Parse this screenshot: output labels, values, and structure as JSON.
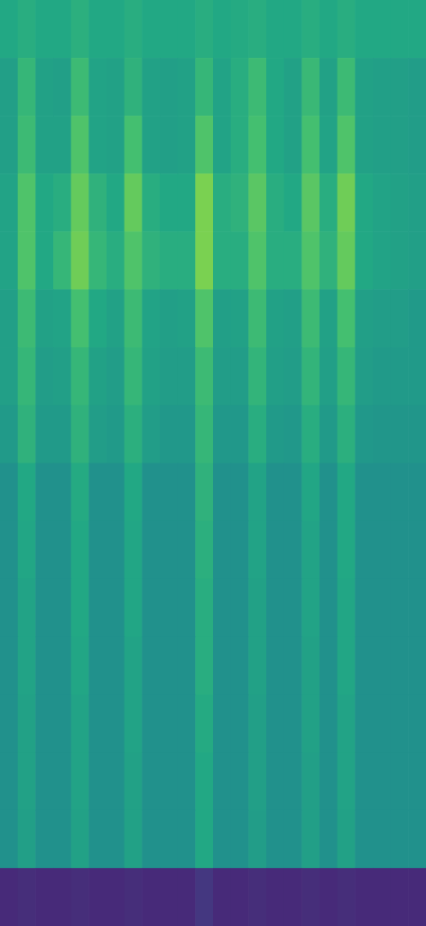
{
  "chart_data": {
    "type": "heatmap",
    "color": "viridis",
    "tick_labels": false,
    "xlim": [
      0,
      24
    ],
    "ylim": [
      0,
      16
    ],
    "color_range": [
      0,
      1
    ],
    "cells": [
      [
        0.6,
        0.62,
        0.6,
        0.6,
        0.63,
        0.6,
        0.6,
        0.62,
        0.6,
        0.6,
        0.6,
        0.62,
        0.6,
        0.61,
        0.62,
        0.6,
        0.6,
        0.62,
        0.6,
        0.62,
        0.6,
        0.6,
        0.6,
        0.6
      ],
      [
        0.56,
        0.66,
        0.57,
        0.56,
        0.68,
        0.58,
        0.57,
        0.64,
        0.57,
        0.56,
        0.57,
        0.66,
        0.58,
        0.62,
        0.68,
        0.6,
        0.57,
        0.67,
        0.57,
        0.68,
        0.57,
        0.56,
        0.56,
        0.55
      ],
      [
        0.56,
        0.68,
        0.57,
        0.57,
        0.72,
        0.58,
        0.57,
        0.7,
        0.57,
        0.56,
        0.57,
        0.72,
        0.58,
        0.62,
        0.7,
        0.6,
        0.57,
        0.7,
        0.58,
        0.72,
        0.57,
        0.56,
        0.56,
        0.55
      ],
      [
        0.58,
        0.72,
        0.6,
        0.62,
        0.76,
        0.64,
        0.6,
        0.76,
        0.62,
        0.6,
        0.6,
        0.8,
        0.62,
        0.64,
        0.74,
        0.62,
        0.6,
        0.74,
        0.62,
        0.78,
        0.6,
        0.58,
        0.57,
        0.56
      ],
      [
        0.58,
        0.72,
        0.6,
        0.66,
        0.78,
        0.66,
        0.62,
        0.72,
        0.64,
        0.62,
        0.62,
        0.8,
        0.62,
        0.62,
        0.72,
        0.62,
        0.62,
        0.72,
        0.64,
        0.76,
        0.6,
        0.58,
        0.57,
        0.56
      ],
      [
        0.56,
        0.68,
        0.57,
        0.58,
        0.7,
        0.6,
        0.57,
        0.68,
        0.58,
        0.56,
        0.57,
        0.72,
        0.56,
        0.57,
        0.68,
        0.57,
        0.56,
        0.68,
        0.57,
        0.7,
        0.56,
        0.55,
        0.55,
        0.54
      ],
      [
        0.56,
        0.66,
        0.55,
        0.56,
        0.66,
        0.57,
        0.55,
        0.66,
        0.57,
        0.55,
        0.55,
        0.68,
        0.55,
        0.55,
        0.65,
        0.56,
        0.55,
        0.65,
        0.56,
        0.66,
        0.55,
        0.54,
        0.54,
        0.54
      ],
      [
        0.54,
        0.64,
        0.54,
        0.54,
        0.64,
        0.55,
        0.54,
        0.63,
        0.55,
        0.53,
        0.53,
        0.66,
        0.53,
        0.53,
        0.62,
        0.54,
        0.53,
        0.62,
        0.54,
        0.63,
        0.53,
        0.52,
        0.52,
        0.52
      ],
      [
        0.5,
        0.6,
        0.5,
        0.5,
        0.61,
        0.5,
        0.5,
        0.6,
        0.5,
        0.5,
        0.5,
        0.64,
        0.5,
        0.5,
        0.58,
        0.5,
        0.5,
        0.59,
        0.5,
        0.6,
        0.5,
        0.5,
        0.5,
        0.5
      ],
      [
        0.5,
        0.59,
        0.5,
        0.5,
        0.6,
        0.5,
        0.5,
        0.59,
        0.5,
        0.5,
        0.5,
        0.63,
        0.5,
        0.5,
        0.58,
        0.5,
        0.5,
        0.58,
        0.5,
        0.6,
        0.5,
        0.5,
        0.5,
        0.5
      ],
      [
        0.5,
        0.58,
        0.5,
        0.5,
        0.6,
        0.5,
        0.5,
        0.59,
        0.5,
        0.5,
        0.5,
        0.62,
        0.5,
        0.5,
        0.57,
        0.5,
        0.5,
        0.58,
        0.5,
        0.59,
        0.5,
        0.5,
        0.5,
        0.5
      ],
      [
        0.5,
        0.58,
        0.5,
        0.5,
        0.59,
        0.5,
        0.5,
        0.58,
        0.5,
        0.5,
        0.5,
        0.62,
        0.5,
        0.5,
        0.57,
        0.5,
        0.5,
        0.57,
        0.5,
        0.59,
        0.5,
        0.5,
        0.5,
        0.5
      ],
      [
        0.5,
        0.57,
        0.5,
        0.5,
        0.58,
        0.5,
        0.5,
        0.58,
        0.5,
        0.5,
        0.5,
        0.61,
        0.5,
        0.5,
        0.56,
        0.5,
        0.5,
        0.57,
        0.5,
        0.58,
        0.5,
        0.5,
        0.5,
        0.5
      ],
      [
        0.5,
        0.57,
        0.5,
        0.5,
        0.58,
        0.5,
        0.5,
        0.57,
        0.5,
        0.5,
        0.5,
        0.6,
        0.5,
        0.5,
        0.56,
        0.5,
        0.5,
        0.56,
        0.5,
        0.58,
        0.5,
        0.5,
        0.5,
        0.5
      ],
      [
        0.5,
        0.56,
        0.5,
        0.5,
        0.57,
        0.5,
        0.5,
        0.57,
        0.5,
        0.5,
        0.5,
        0.6,
        0.5,
        0.5,
        0.55,
        0.5,
        0.5,
        0.56,
        0.5,
        0.57,
        0.5,
        0.5,
        0.5,
        0.5
      ],
      [
        0.12,
        0.13,
        0.12,
        0.12,
        0.13,
        0.12,
        0.12,
        0.13,
        0.12,
        0.12,
        0.12,
        0.16,
        0.12,
        0.12,
        0.13,
        0.12,
        0.12,
        0.13,
        0.12,
        0.13,
        0.12,
        0.12,
        0.12,
        0.12
      ]
    ]
  }
}
